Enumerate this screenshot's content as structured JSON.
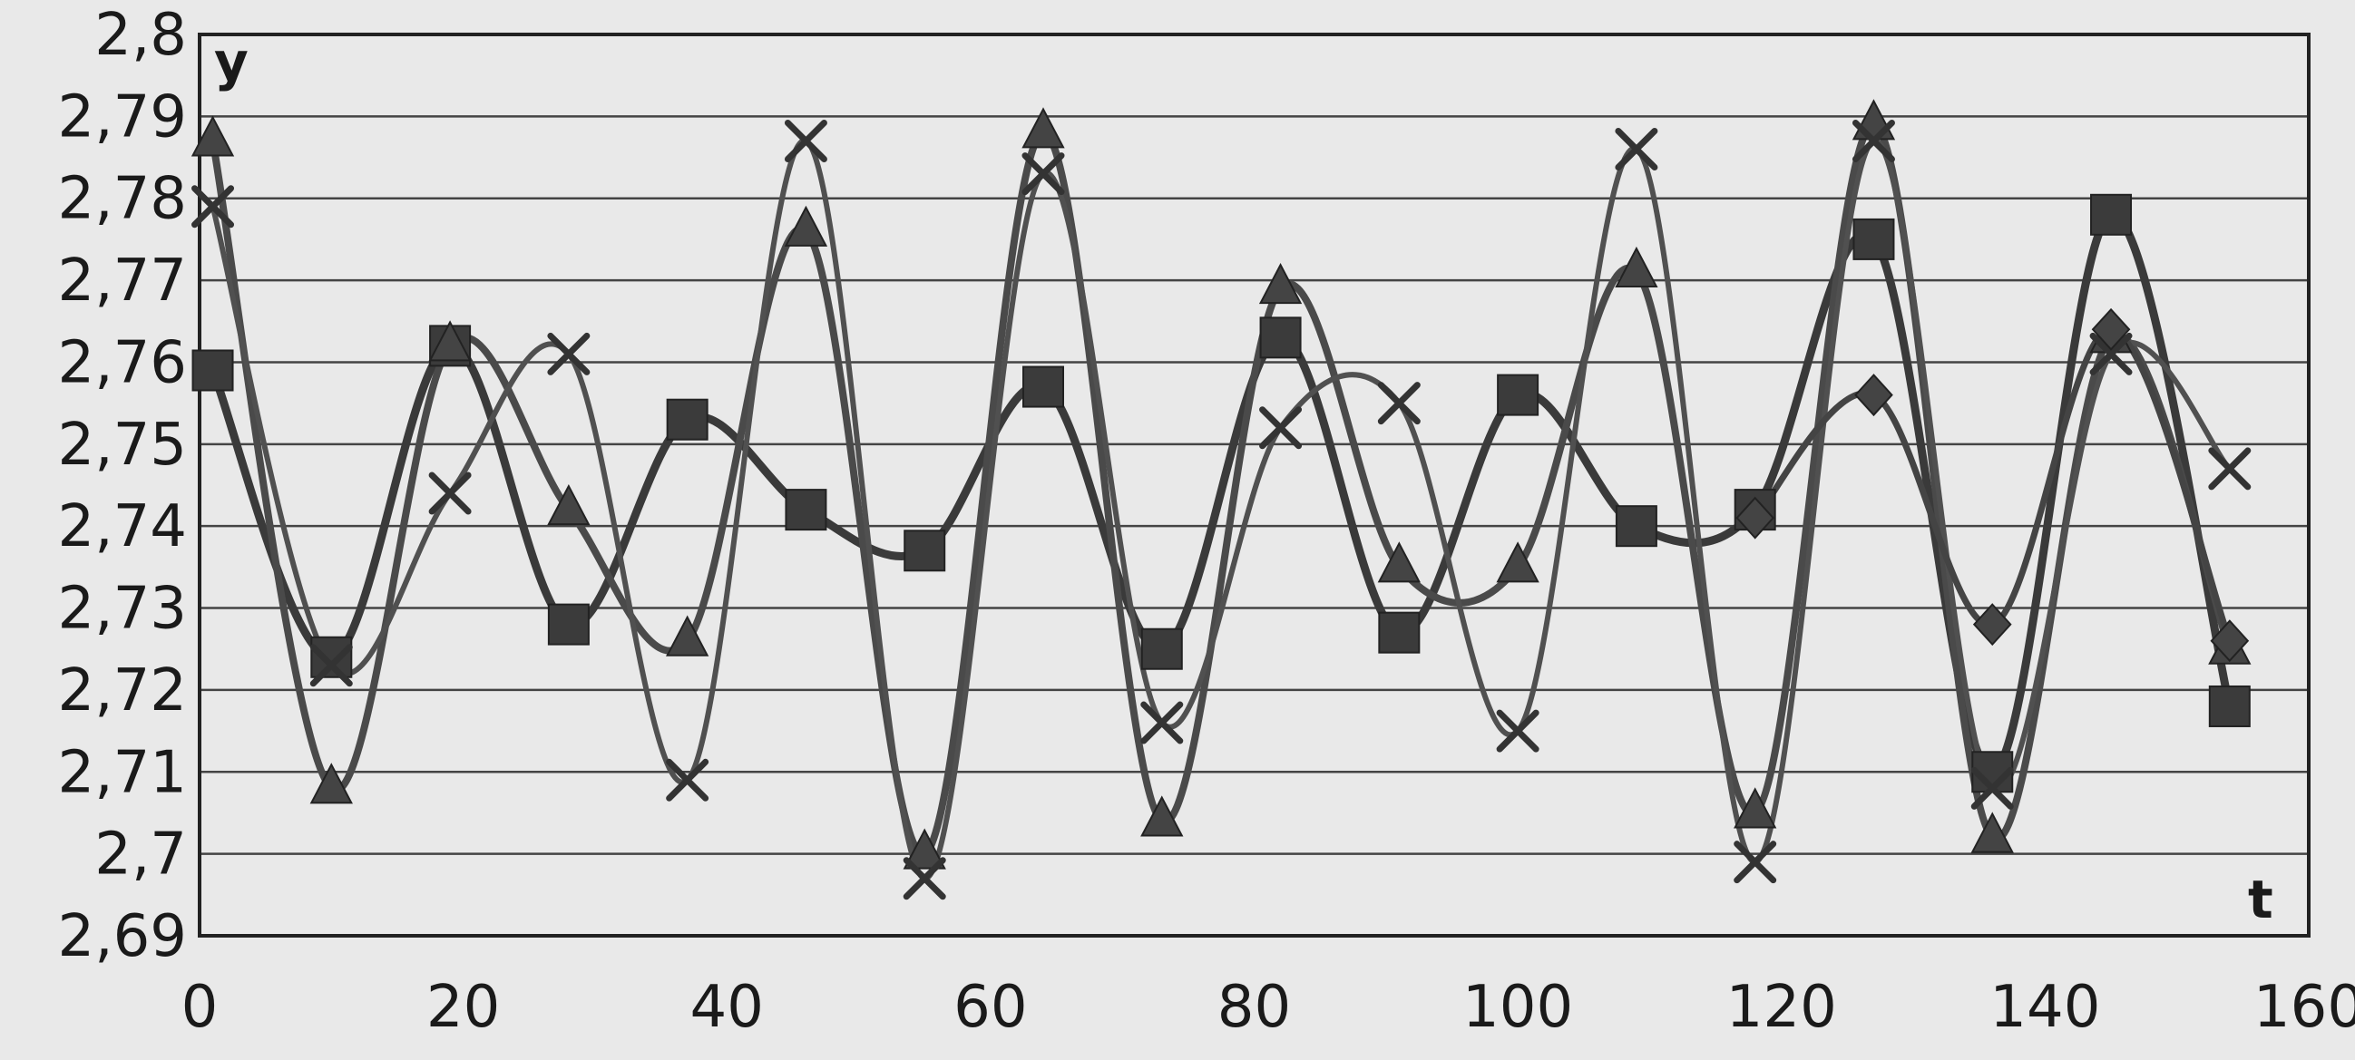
{
  "chart_data": {
    "type": "line",
    "xlabel": "t",
    "ylabel": "y",
    "xlim": [
      0,
      160
    ],
    "ylim": [
      2.69,
      2.8
    ],
    "x_ticks": [
      0,
      20,
      40,
      60,
      80,
      100,
      120,
      140,
      160
    ],
    "x_tick_labels": [
      "0",
      "20",
      "40",
      "60",
      "80",
      "100",
      "120",
      "140",
      "160"
    ],
    "y_ticks": [
      2.69,
      2.7,
      2.71,
      2.72,
      2.73,
      2.74,
      2.75,
      2.76,
      2.77,
      2.78,
      2.79,
      2.8
    ],
    "y_tick_labels": [
      "2,69",
      "2,7",
      "2,71",
      "2,72",
      "2,73",
      "2,74",
      "2,75",
      "2,76",
      "2,77",
      "2,78",
      "2,79",
      "2,8"
    ],
    "grid": "horizontal",
    "legend": "none",
    "series": [
      {
        "marker": "square",
        "x": [
          1,
          10,
          19,
          28,
          37,
          46,
          55,
          64,
          73,
          82,
          91,
          100,
          109,
          118,
          127,
          136,
          145,
          154
        ],
        "values": [
          2.759,
          2.724,
          2.762,
          2.728,
          2.753,
          2.742,
          2.737,
          2.757,
          2.725,
          2.763,
          2.727,
          2.756,
          2.74,
          2.742,
          2.775,
          2.71,
          2.778,
          2.718
        ]
      },
      {
        "marker": "triangle",
        "x": [
          1,
          10,
          19,
          28,
          37,
          46,
          55,
          64,
          73,
          82,
          91,
          100,
          109,
          118,
          127,
          136,
          145,
          154
        ],
        "values": [
          2.787,
          2.708,
          2.762,
          2.742,
          2.726,
          2.776,
          2.7,
          2.788,
          2.704,
          2.769,
          2.735,
          2.735,
          2.771,
          2.705,
          2.789,
          2.702,
          2.763,
          2.725
        ]
      },
      {
        "marker": "x",
        "x": [
          1,
          10,
          19,
          28,
          37,
          46,
          55,
          64,
          73,
          82,
          91,
          100,
          109,
          118,
          127,
          136,
          145,
          154
        ],
        "values": [
          2.779,
          2.723,
          2.744,
          2.761,
          2.709,
          2.787,
          2.697,
          2.783,
          2.716,
          2.752,
          2.755,
          2.715,
          2.786,
          2.699,
          2.787,
          2.708,
          2.761,
          2.747
        ]
      },
      {
        "marker": "diamond",
        "x": [
          118,
          127,
          136,
          145,
          154
        ],
        "values": [
          2.741,
          2.756,
          2.728,
          2.764,
          2.726
        ]
      }
    ]
  }
}
